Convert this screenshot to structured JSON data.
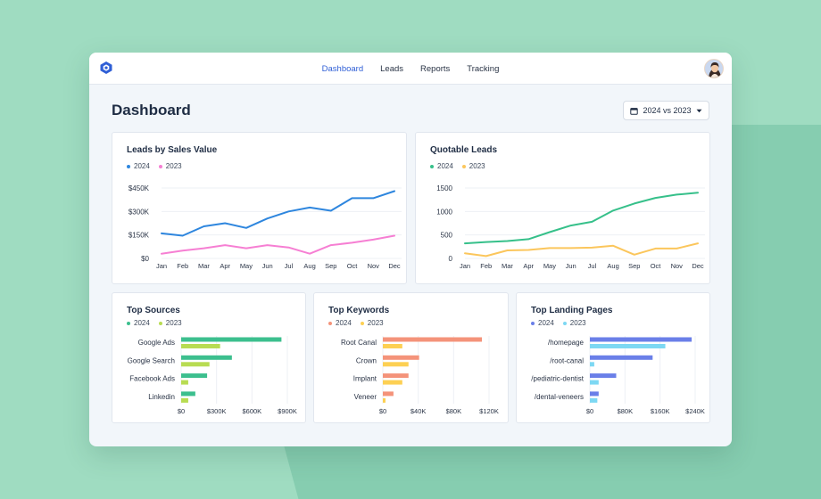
{
  "nav": {
    "items": [
      "Dashboard",
      "Leads",
      "Reports",
      "Tracking"
    ],
    "active": "Dashboard"
  },
  "page": {
    "title": "Dashboard"
  },
  "date_filter": {
    "label": "2024 vs 2023"
  },
  "colors": {
    "bar_2024_sources": "#3cbf8e",
    "bar_2023_sources": "#b8dc52",
    "bar_2024_keywords": "#f4937a",
    "bar_2023_keywords": "#fdd053",
    "bar_2024_landing": "#6a7fe8",
    "bar_2023_landing": "#7dd8f3",
    "line_sales_2024": "#2e86de",
    "line_sales_2023": "#f67fd3",
    "line_quotable_2024": "#36c08a",
    "line_quotable_2023": "#fbc65c"
  },
  "cards": {
    "sales": {
      "title": "Leads by Sales Value",
      "legend": [
        "2024",
        "2023"
      ]
    },
    "quotable": {
      "title": "Quotable Leads",
      "legend": [
        "2024",
        "2023"
      ]
    },
    "sources": {
      "title": "Top Sources",
      "legend": [
        "2024",
        "2023"
      ]
    },
    "keywords": {
      "title": "Top Keywords",
      "legend": [
        "2024",
        "2023"
      ]
    },
    "landing": {
      "title": "Top Landing Pages",
      "legend": [
        "2024",
        "2023"
      ]
    }
  },
  "chart_data": [
    {
      "id": "sales",
      "type": "line",
      "x": [
        "Jan",
        "Feb",
        "Mar",
        "Apr",
        "May",
        "Jun",
        "Jul",
        "Aug",
        "Sep",
        "Oct",
        "Nov",
        "Dec"
      ],
      "y_ticks": [
        "$0",
        "$150K",
        "$300K",
        "$450K"
      ],
      "ylim": [
        0,
        450000
      ],
      "series": [
        {
          "name": "2024",
          "values": [
            160000,
            145000,
            205000,
            225000,
            195000,
            255000,
            300000,
            325000,
            305000,
            385000,
            385000,
            430000
          ]
        },
        {
          "name": "2023",
          "values": [
            30000,
            50000,
            65000,
            85000,
            65000,
            85000,
            70000,
            30000,
            85000,
            100000,
            120000,
            145000
          ]
        }
      ]
    },
    {
      "id": "quotable",
      "type": "line",
      "x": [
        "Jan",
        "Feb",
        "Mar",
        "Apr",
        "May",
        "Jun",
        "Jul",
        "Aug",
        "Sep",
        "Oct",
        "Nov",
        "Dec"
      ],
      "y_ticks": [
        "0",
        "500",
        "1000",
        "1500"
      ],
      "ylim": [
        0,
        1500
      ],
      "series": [
        {
          "name": "2024",
          "values": [
            320,
            350,
            370,
            410,
            560,
            700,
            780,
            1020,
            1170,
            1290,
            1360,
            1400
          ]
        },
        {
          "name": "2023",
          "values": [
            110,
            50,
            170,
            180,
            220,
            220,
            230,
            270,
            80,
            210,
            210,
            320
          ]
        }
      ]
    },
    {
      "id": "sources",
      "type": "bar",
      "categories": [
        "Google Ads",
        "Google Search",
        "Facebook Ads",
        "Linkedin"
      ],
      "x_ticks": [
        "$0",
        "$300K",
        "$600K",
        "$900K"
      ],
      "xlim": [
        0,
        900000
      ],
      "series": [
        {
          "name": "2024",
          "values": [
            850000,
            430000,
            220000,
            120000
          ]
        },
        {
          "name": "2023",
          "values": [
            330000,
            240000,
            60000,
            60000
          ]
        }
      ]
    },
    {
      "id": "keywords",
      "type": "bar",
      "categories": [
        "Root Canal",
        "Crown",
        "Implant",
        "Veneer"
      ],
      "x_ticks": [
        "$0",
        "$40K",
        "$80K",
        "$120K"
      ],
      "xlim": [
        0,
        120000
      ],
      "series": [
        {
          "name": "2024",
          "values": [
            112000,
            41000,
            29000,
            12000
          ]
        },
        {
          "name": "2023",
          "values": [
            22000,
            29000,
            22000,
            3000
          ]
        }
      ]
    },
    {
      "id": "landing",
      "type": "bar",
      "categories": [
        "/homepage",
        "/root-canal",
        "/pediatric-dentist",
        "/dental-veneers"
      ],
      "x_ticks": [
        "$0",
        "$80K",
        "$160K",
        "$240K"
      ],
      "xlim": [
        0,
        240000
      ],
      "series": [
        {
          "name": "2024",
          "values": [
            232000,
            143000,
            60000,
            20000
          ]
        },
        {
          "name": "2023",
          "values": [
            172000,
            10000,
            20000,
            17000
          ]
        }
      ]
    }
  ]
}
